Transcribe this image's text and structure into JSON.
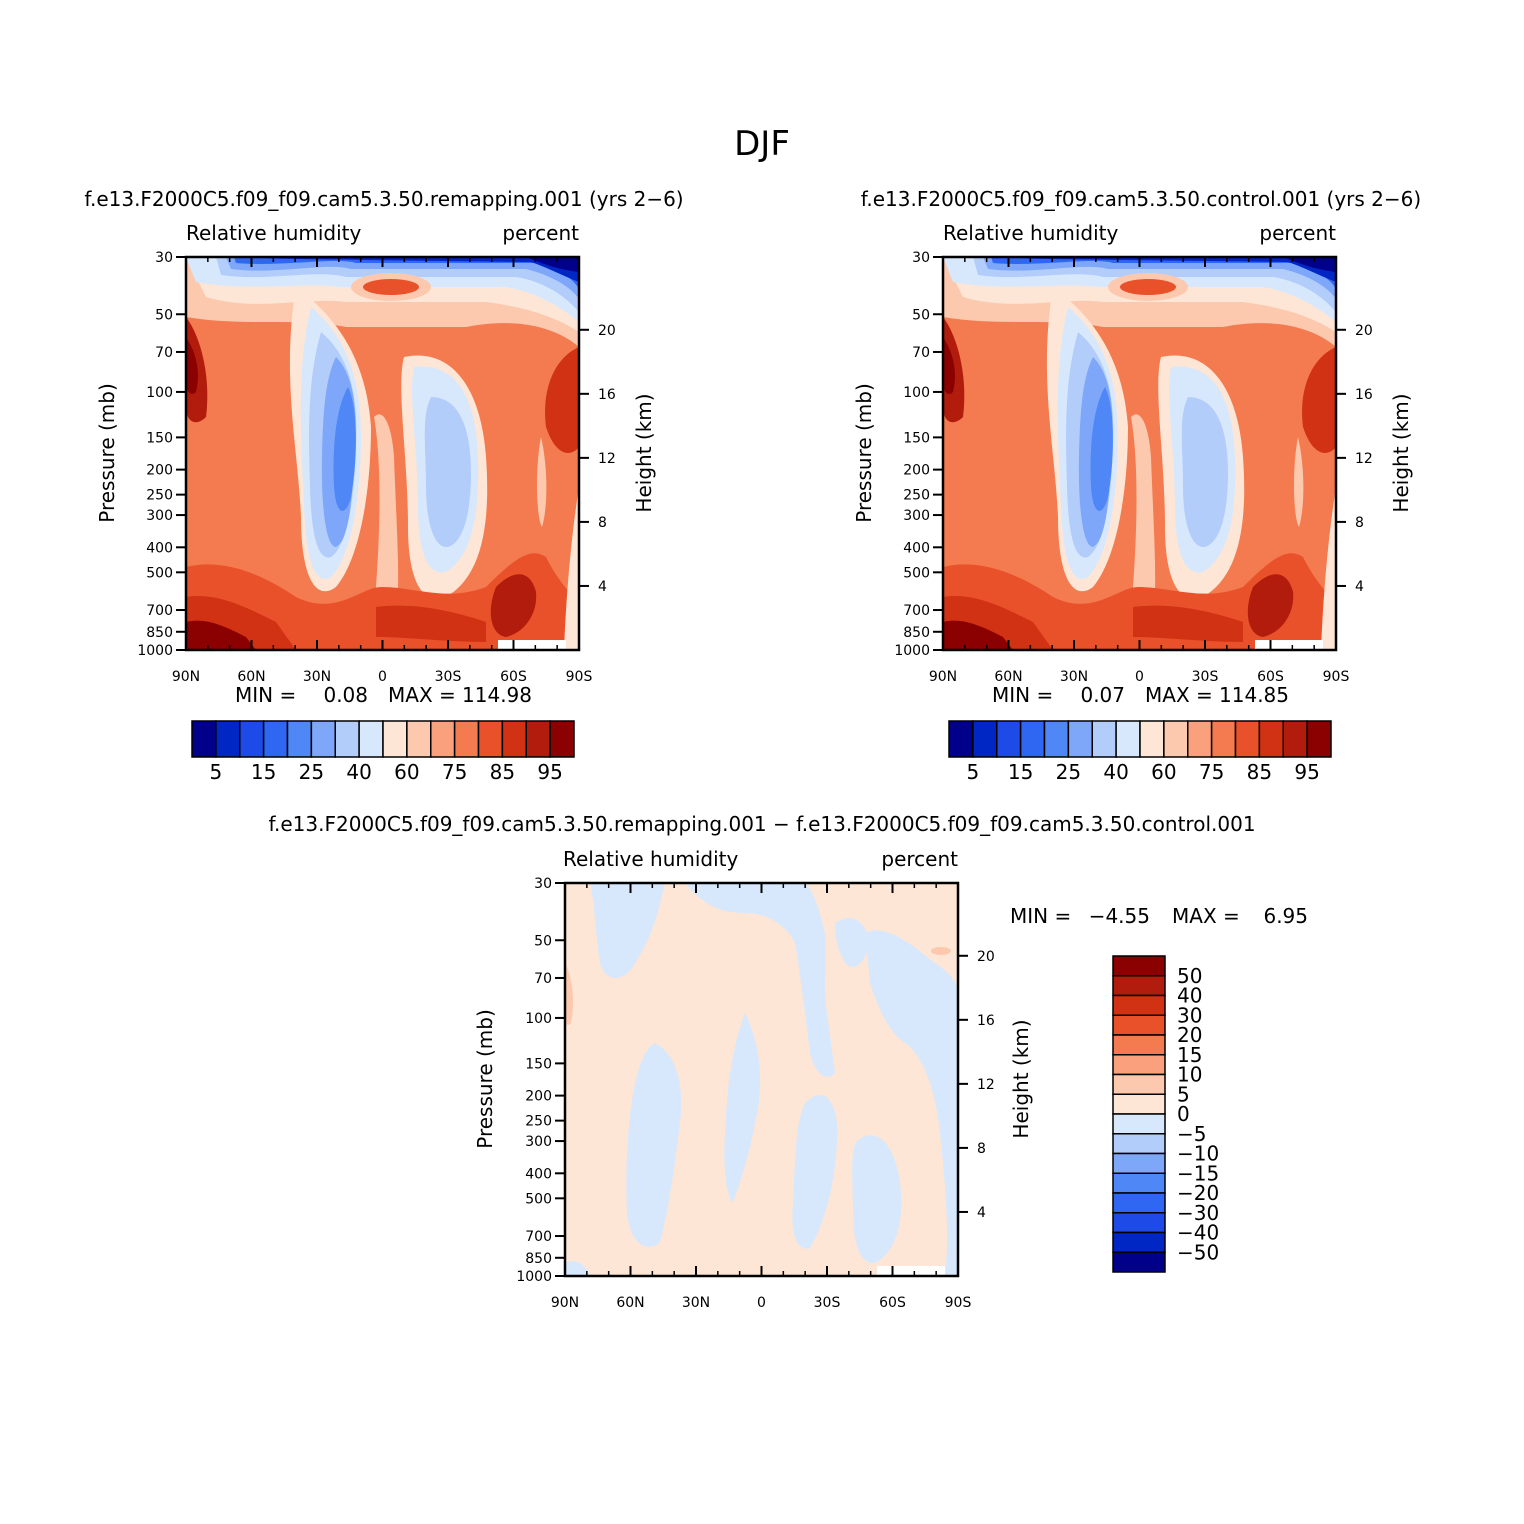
{
  "figure": {
    "title": "DJF"
  },
  "chart_data": [
    {
      "type": "heatmap",
      "id": "remapping",
      "title": "f.e13.F2000C5.f09_f09.cam5.3.50.remapping.001 (yrs 2−6)",
      "left_label": "Relative humidity",
      "right_label": "percent",
      "ylabel": "Pressure (mb)",
      "ylabel_right": "Height (km)",
      "x_ticks": [
        "90N",
        "60N",
        "30N",
        "0",
        "30S",
        "60S",
        "90S"
      ],
      "y_ticks": [
        "30",
        "50",
        "70",
        "100",
        "150",
        "200",
        "250",
        "300",
        "400",
        "500",
        "700",
        "850",
        "1000"
      ],
      "y_ticks_right": [
        "20",
        "16",
        "12",
        "8",
        "4"
      ],
      "stats": {
        "min_label": "MIN =",
        "min": "0.08",
        "max_label": "MAX =",
        "max": "114.98"
      },
      "colorbar": {
        "labels": [
          "5",
          "15",
          "25",
          "40",
          "60",
          "75",
          "85",
          "95"
        ],
        "colors": [
          "#00008b",
          "#0026c4",
          "#1e4ae8",
          "#2f66f2",
          "#5087f7",
          "#7fa7f9",
          "#b3cdfb",
          "#d8e8fc",
          "#fde6d5",
          "#fcc9ae",
          "#faa07c",
          "#f47a4f",
          "#e9512b",
          "#d13214",
          "#b21c0c",
          "#8b0000"
        ]
      }
    },
    {
      "type": "heatmap",
      "id": "control",
      "title": "f.e13.F2000C5.f09_f09.cam5.3.50.control.001 (yrs 2−6)",
      "left_label": "Relative humidity",
      "right_label": "percent",
      "ylabel": "Pressure (mb)",
      "ylabel_right": "Height (km)",
      "x_ticks": [
        "90N",
        "60N",
        "30N",
        "0",
        "30S",
        "60S",
        "90S"
      ],
      "y_ticks": [
        "30",
        "50",
        "70",
        "100",
        "150",
        "200",
        "250",
        "300",
        "400",
        "500",
        "700",
        "850",
        "1000"
      ],
      "y_ticks_right": [
        "20",
        "16",
        "12",
        "8",
        "4"
      ],
      "stats": {
        "min_label": "MIN =",
        "min": "0.07",
        "max_label": "MAX =",
        "max": "114.85"
      },
      "colorbar": {
        "labels": [
          "5",
          "15",
          "25",
          "40",
          "60",
          "75",
          "85",
          "95"
        ],
        "colors": [
          "#00008b",
          "#0026c4",
          "#1e4ae8",
          "#2f66f2",
          "#5087f7",
          "#7fa7f9",
          "#b3cdfb",
          "#d8e8fc",
          "#fde6d5",
          "#fcc9ae",
          "#faa07c",
          "#f47a4f",
          "#e9512b",
          "#d13214",
          "#b21c0c",
          "#8b0000"
        ]
      }
    },
    {
      "type": "heatmap",
      "id": "difference",
      "title": "f.e13.F2000C5.f09_f09.cam5.3.50.remapping.001 − f.e13.F2000C5.f09_f09.cam5.3.50.control.001",
      "left_label": "Relative humidity",
      "right_label": "percent",
      "ylabel": "Pressure (mb)",
      "ylabel_right": "Height (km)",
      "x_ticks": [
        "90N",
        "60N",
        "30N",
        "0",
        "30S",
        "60S",
        "90S"
      ],
      "y_ticks": [
        "30",
        "50",
        "70",
        "100",
        "150",
        "200",
        "250",
        "300",
        "400",
        "500",
        "700",
        "850",
        "1000"
      ],
      "y_ticks_right": [
        "20",
        "16",
        "12",
        "8",
        "4"
      ],
      "stats": {
        "min_label": "MIN =",
        "min": "−4.55",
        "max_label": "MAX =",
        "max": "6.95"
      },
      "colorbar": {
        "labels": [
          "50",
          "40",
          "30",
          "20",
          "15",
          "10",
          "5",
          "0",
          "−5",
          "−10",
          "−15",
          "−20",
          "−30",
          "−40",
          "−50"
        ],
        "colors": [
          "#8b0000",
          "#b21c0c",
          "#d13214",
          "#e9512b",
          "#f47a4f",
          "#faa07c",
          "#fcc9ae",
          "#fde6d5",
          "#d8e8fc",
          "#b3cdfb",
          "#7fa7f9",
          "#5087f7",
          "#2f66f2",
          "#1e4ae8",
          "#0026c4",
          "#00008b"
        ]
      }
    }
  ]
}
